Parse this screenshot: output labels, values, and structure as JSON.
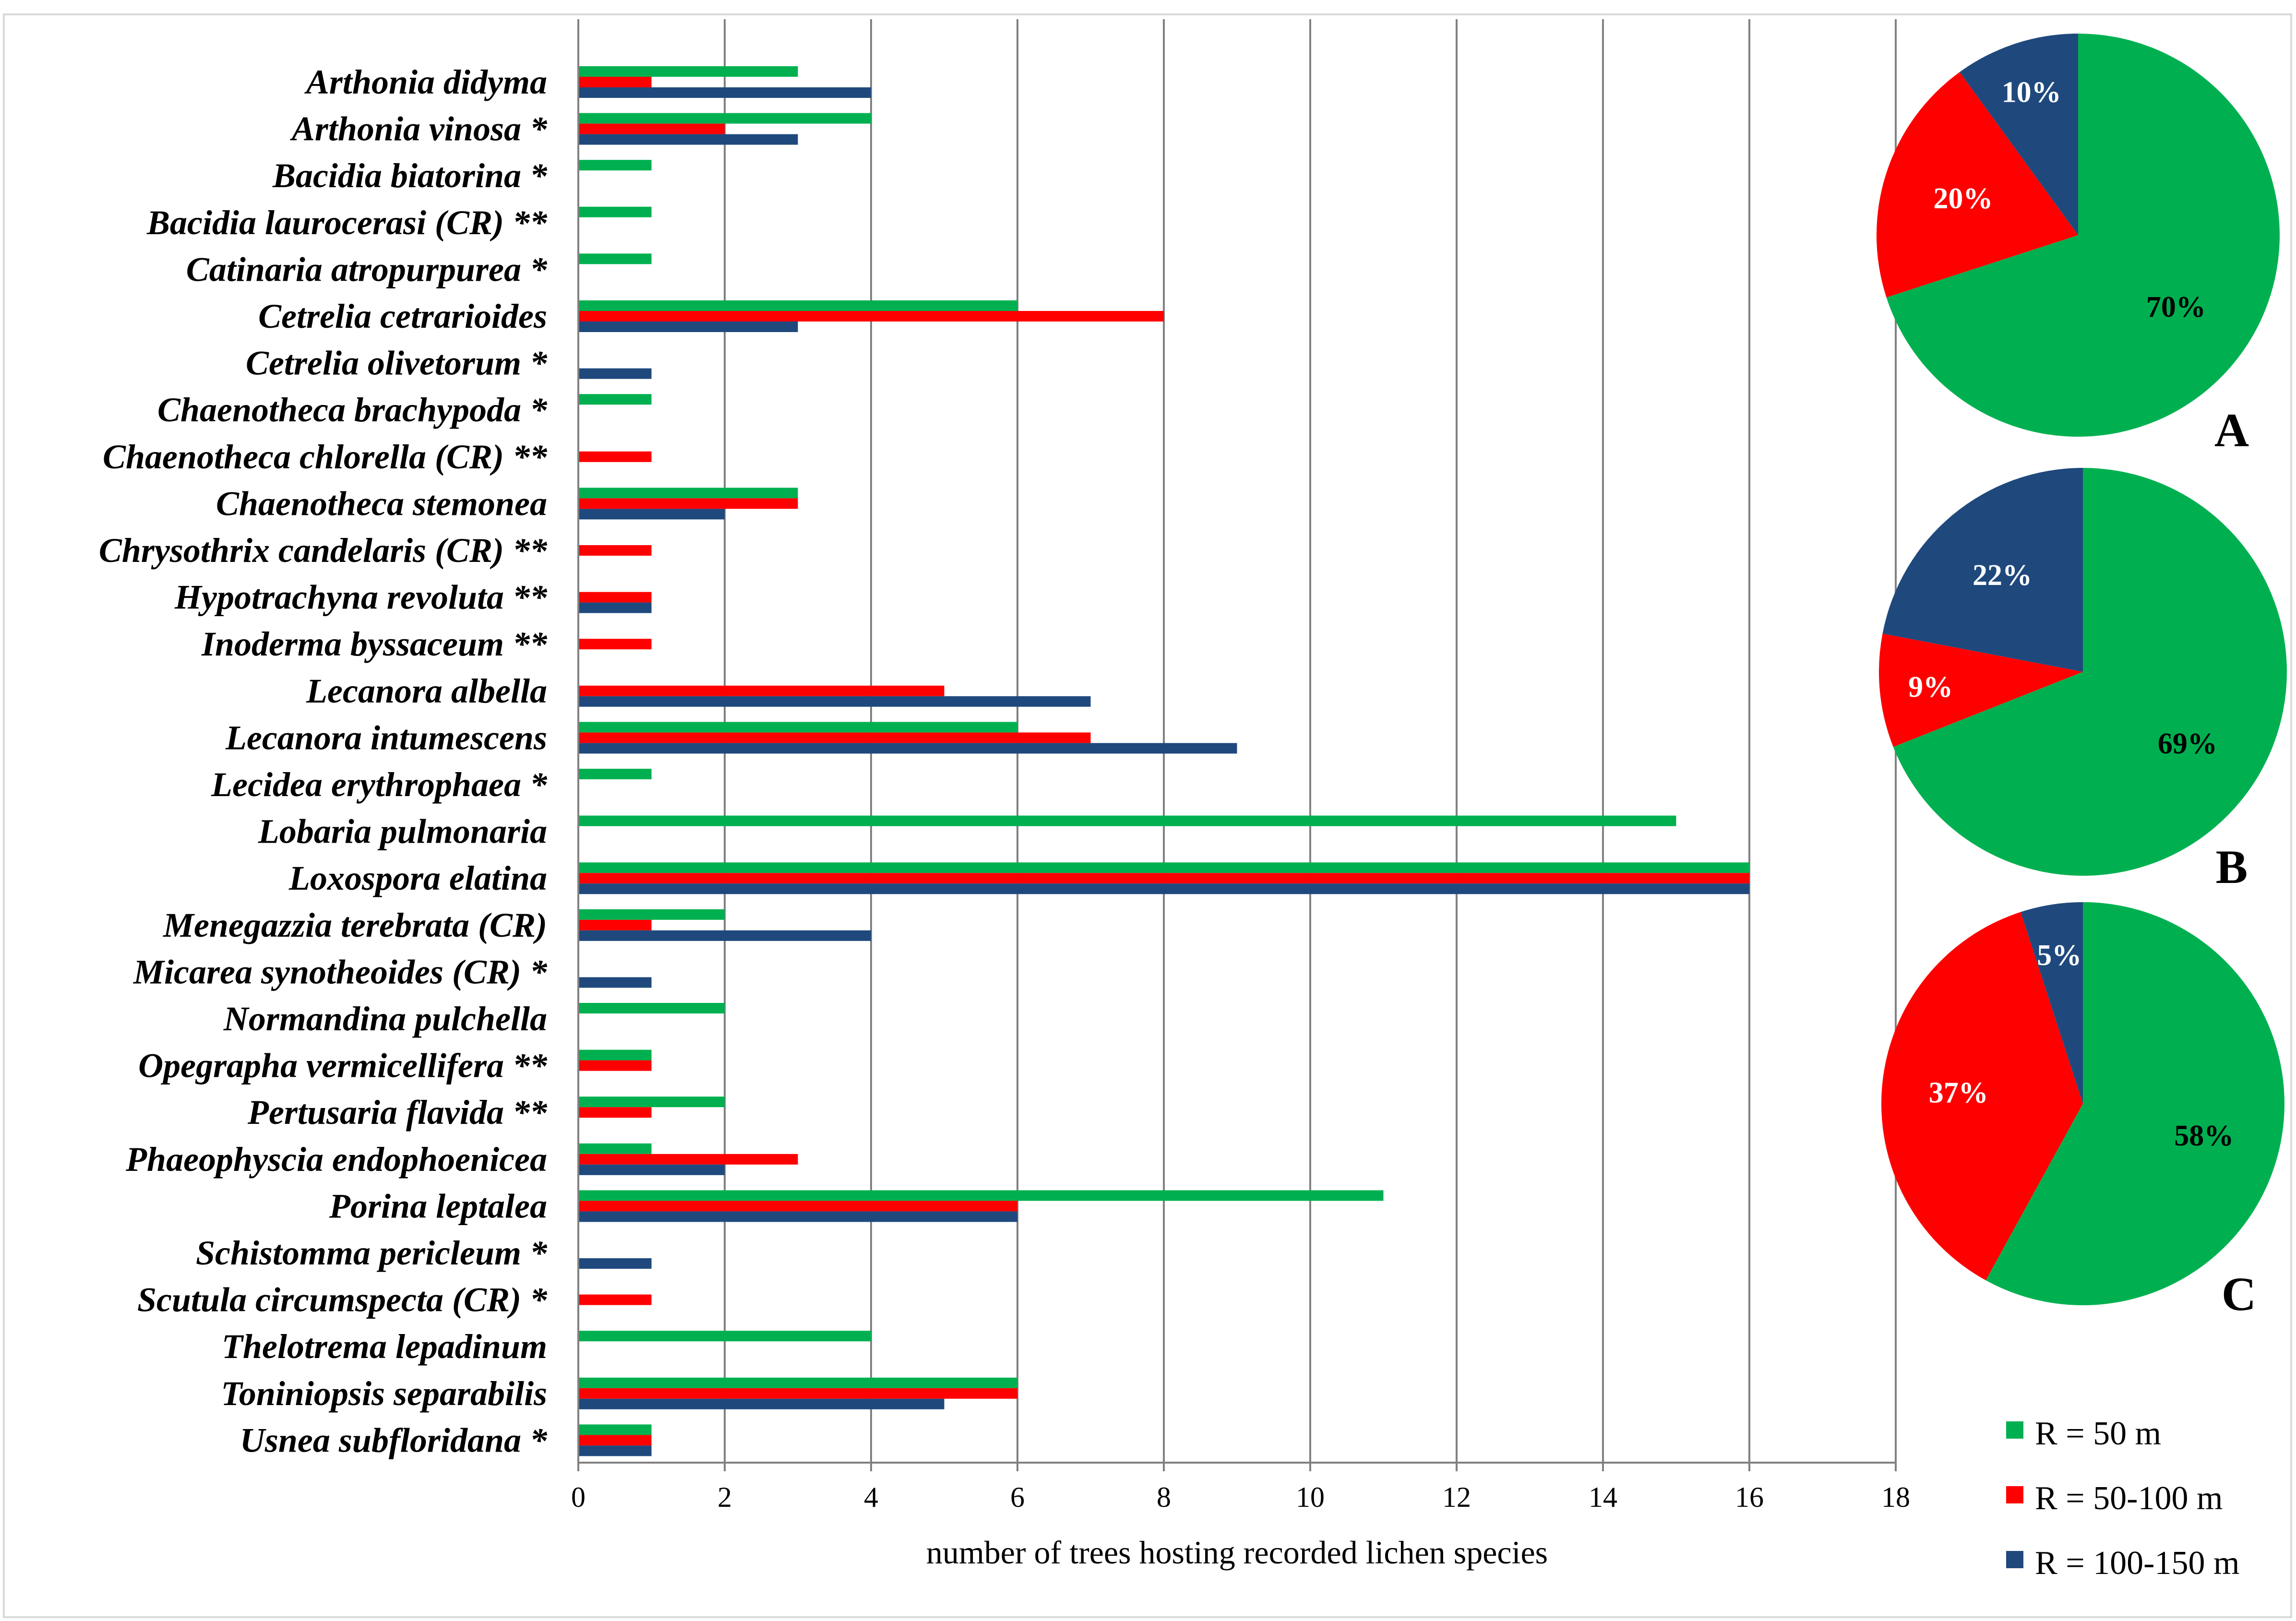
{
  "colors": {
    "r50": "#00b050",
    "r50_100": "#ff0000",
    "r100_150": "#1f497d"
  },
  "legend": {
    "items": [
      {
        "key": "r50",
        "label": "R = 50 m"
      },
      {
        "key": "r50_100",
        "label": "R = 50-100 m"
      },
      {
        "key": "r100_150",
        "label": "R = 100-150 m"
      }
    ]
  },
  "chart_data": [
    {
      "type": "bar",
      "orientation": "horizontal",
      "xlabel": "number of trees hosting recorded lichen species",
      "xlim": [
        0,
        18
      ],
      "xticks": [
        0,
        2,
        4,
        6,
        8,
        10,
        12,
        14,
        16,
        18
      ],
      "grid": "vertical",
      "categories": [
        "Arthonia didyma",
        "Arthonia vinosa *",
        "Bacidia biatorina *",
        "Bacidia laurocerasi (CR) **",
        "Catinaria atropurpurea *",
        "Cetrelia cetrarioides",
        "Cetrelia olivetorum *",
        "Chaenotheca brachypoda *",
        "Chaenotheca chlorella (CR) **",
        "Chaenotheca stemonea",
        "Chrysothrix candelaris (CR) **",
        "Hypotrachyna revoluta **",
        "Inoderma byssaceum **",
        "Lecanora albella",
        "Lecanora intumescens",
        "Lecidea erythrophaea *",
        "Lobaria pulmonaria",
        "Loxospora elatina",
        "Menegazzia terebrata (CR)",
        "Micarea synotheoides (CR) *",
        "Normandina pulchella",
        "Opegrapha vermicellifera **",
        "Pertusaria flavida **",
        "Phaeophyscia endophoenicea",
        "Porina leptalea",
        "Schistomma pericleum *",
        "Scutula circumspecta (CR) *",
        "Thelotrema lepadinum",
        "Toniniopsis separabilis",
        "Usnea subfloridana *"
      ],
      "series": [
        {
          "name": "R = 50 m",
          "color_key": "r50",
          "values": [
            3,
            4,
            1,
            1,
            1,
            6,
            0,
            1,
            0,
            3,
            0,
            0,
            0,
            0,
            6,
            1,
            15,
            16,
            2,
            0,
            2,
            1,
            2,
            1,
            11,
            0,
            0,
            4,
            6,
            1
          ]
        },
        {
          "name": "R = 50-100 m",
          "color_key": "r50_100",
          "values": [
            1,
            2,
            0,
            0,
            0,
            8,
            0,
            0,
            1,
            3,
            1,
            1,
            1,
            5,
            7,
            0,
            0,
            16,
            1,
            0,
            0,
            1,
            1,
            3,
            6,
            0,
            1,
            0,
            6,
            1
          ]
        },
        {
          "name": "R = 100-150 m",
          "color_key": "r100_150",
          "values": [
            4,
            3,
            0,
            0,
            0,
            3,
            1,
            0,
            0,
            2,
            0,
            1,
            0,
            7,
            9,
            0,
            0,
            16,
            4,
            1,
            0,
            0,
            0,
            2,
            6,
            1,
            0,
            0,
            5,
            1
          ]
        }
      ]
    },
    {
      "type": "pie",
      "panel": "A",
      "slices": [
        {
          "label": "70%",
          "value": 70,
          "color_key": "r50"
        },
        {
          "label": "20%",
          "value": 20,
          "color_key": "r50_100"
        },
        {
          "label": "10%",
          "value": 10,
          "color_key": "r100_150"
        }
      ]
    },
    {
      "type": "pie",
      "panel": "B",
      "slices": [
        {
          "label": "69%",
          "value": 69,
          "color_key": "r50"
        },
        {
          "label": "9%",
          "value": 9,
          "color_key": "r50_100"
        },
        {
          "label": "22%",
          "value": 22,
          "color_key": "r100_150"
        }
      ]
    },
    {
      "type": "pie",
      "panel": "C",
      "slices": [
        {
          "label": "58%",
          "value": 58,
          "color_key": "r50"
        },
        {
          "label": "37%",
          "value": 37,
          "color_key": "r50_100"
        },
        {
          "label": "5%",
          "value": 5,
          "color_key": "r100_150"
        }
      ]
    }
  ]
}
